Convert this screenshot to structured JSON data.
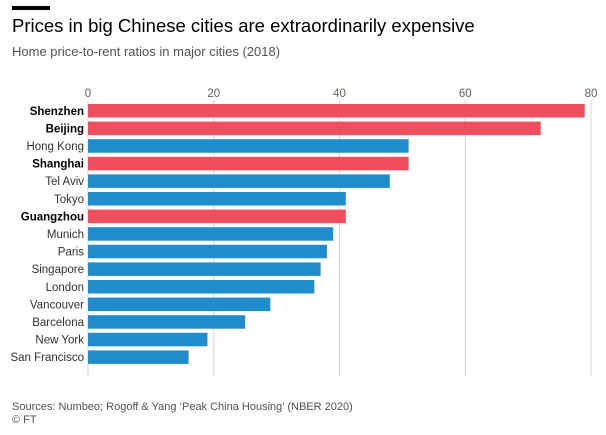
{
  "header": {
    "title": "Prices in big Chinese cities are extraordinarily expensive",
    "subtitle": "Home price-to-rent ratios in major cities (2018)"
  },
  "footer": {
    "source": "Sources: Numbeo; Rogoff & Yang ‘Peak China Housing’ (NBER 2020)",
    "credit": "© FT"
  },
  "colors": {
    "highlight": "#f04d5e",
    "default": "#1f8dcb",
    "grid": "#d9d4cf",
    "label": "#33302e"
  },
  "chart_data": {
    "type": "bar",
    "orientation": "horizontal",
    "title": "Prices in big Chinese cities are extraordinarily expensive",
    "subtitle": "Home price-to-rent ratios in major cities (2018)",
    "xlim": [
      0,
      80
    ],
    "x_ticks": [
      0,
      20,
      40,
      60,
      80
    ],
    "axis_position": "top",
    "grid": true,
    "categories": [
      "Shenzhen",
      "Beijing",
      "Hong Kong",
      "Shanghai",
      "Tel Aviv",
      "Tokyo",
      "Guangzhou",
      "Munich",
      "Paris",
      "Singapore",
      "London",
      "Vancouver",
      "Barcelona",
      "New York",
      "San Francisco"
    ],
    "values": [
      79,
      72,
      51,
      51,
      48,
      41,
      41,
      39,
      38,
      37,
      36,
      29,
      25,
      19,
      16
    ],
    "highlighted": [
      "Shenzhen",
      "Beijing",
      "Shanghai",
      "Guangzhou"
    ]
  }
}
